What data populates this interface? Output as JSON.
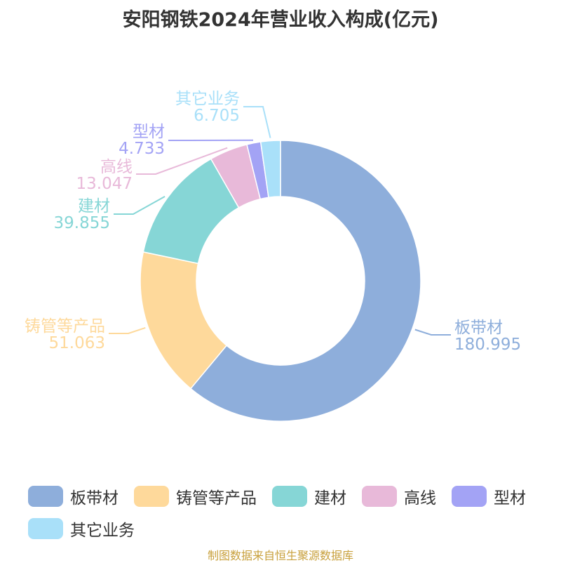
{
  "chart_data": {
    "type": "pie",
    "title": "安阳钢铁2024年营业收入构成(亿元)",
    "donut": true,
    "categories": [
      "板带材",
      "铸管等产品",
      "建材",
      "高线",
      "型材",
      "其它业务"
    ],
    "values": [
      180.995,
      51.063,
      39.855,
      13.047,
      4.733,
      6.705
    ],
    "value_labels": [
      "180.995",
      "51.063",
      "39.855",
      "13.047",
      "4.733",
      "6.705"
    ],
    "colors": [
      "#8eaedb",
      "#fed99b",
      "#86d6d6",
      "#e8b9d9",
      "#a3a3f5",
      "#a9e0f9"
    ],
    "legend_position": "bottom"
  },
  "source": "制图数据来自恒生聚源数据库"
}
